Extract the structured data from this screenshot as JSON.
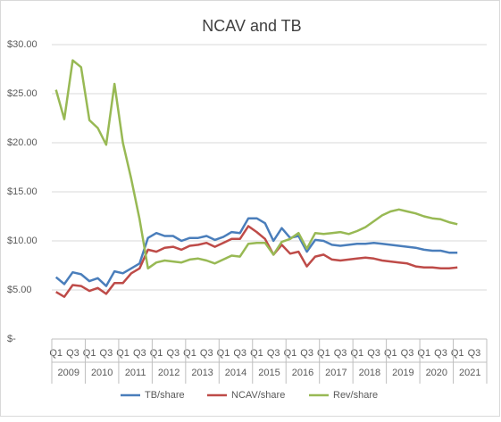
{
  "chart_data": {
    "type": "line",
    "title": "NCAV and TB",
    "categories": [
      "Q1",
      null,
      "Q3",
      null,
      "Q1",
      null,
      "Q3",
      null,
      "Q1",
      null,
      "Q3",
      null,
      "Q1",
      null,
      "Q3",
      null,
      "Q1",
      null,
      "Q3",
      null,
      "Q1",
      null,
      "Q3",
      null,
      "Q1",
      null,
      "Q3",
      null,
      "Q1",
      null,
      "Q3",
      null,
      "Q1",
      null,
      "Q3",
      null,
      "Q1",
      null,
      "Q3",
      null,
      "Q1",
      null,
      "Q3",
      null,
      "Q1",
      null,
      "Q3",
      null,
      "Q1",
      null,
      "Q3",
      null
    ],
    "years": [
      "2009",
      "2010",
      "2011",
      "2012",
      "2013",
      "2014",
      "2015",
      "2016",
      "2017",
      "2018",
      "2019",
      "2020",
      "2021"
    ],
    "series": [
      {
        "name": "TB/share",
        "color": "#4a7ebb",
        "values": [
          6.3,
          5.6,
          6.8,
          6.6,
          5.9,
          6.2,
          5.4,
          6.9,
          6.7,
          7.2,
          7.7,
          10.3,
          10.8,
          10.5,
          10.5,
          10.0,
          10.3,
          10.3,
          10.5,
          10.1,
          10.4,
          10.9,
          10.8,
          12.3,
          12.3,
          11.8,
          10.0,
          11.3,
          10.3,
          10.5,
          8.9,
          10.1,
          10.0,
          9.6,
          9.5,
          9.6,
          9.7,
          9.7,
          9.8,
          9.7,
          9.6,
          9.5,
          9.4,
          9.3,
          9.1,
          9.0,
          9.0,
          8.8,
          8.8,
          null,
          null,
          null
        ]
      },
      {
        "name": "NCAV/share",
        "color": "#be4b48",
        "values": [
          4.8,
          4.3,
          5.5,
          5.4,
          4.9,
          5.2,
          4.6,
          5.7,
          5.7,
          6.7,
          7.2,
          9.1,
          8.9,
          9.3,
          9.4,
          9.1,
          9.5,
          9.6,
          9.8,
          9.4,
          9.8,
          10.2,
          10.2,
          11.5,
          10.9,
          10.2,
          8.6,
          9.6,
          8.7,
          8.9,
          7.4,
          8.4,
          8.6,
          8.1,
          8.0,
          8.1,
          8.2,
          8.3,
          8.2,
          8.0,
          7.9,
          7.8,
          7.7,
          7.4,
          7.3,
          7.3,
          7.2,
          7.2,
          7.3,
          null,
          null,
          null
        ]
      },
      {
        "name": "Rev/share",
        "color": "#98b954",
        "values": [
          25.4,
          22.4,
          28.4,
          27.7,
          22.3,
          21.5,
          19.8,
          26.0,
          20.0,
          16.3,
          12.2,
          7.2,
          7.8,
          8.0,
          7.9,
          7.8,
          8.1,
          8.2,
          8.0,
          7.7,
          8.1,
          8.5,
          8.4,
          9.7,
          9.8,
          9.8,
          8.6,
          9.9,
          10.2,
          10.8,
          9.2,
          10.8,
          10.7,
          10.8,
          10.9,
          10.7,
          11.0,
          11.4,
          12.0,
          12.6,
          13.0,
          13.2,
          13.0,
          12.8,
          12.5,
          12.3,
          12.2,
          11.9,
          11.7,
          null,
          null,
          null
        ]
      }
    ],
    "ylim": [
      0,
      30
    ],
    "yticks": [
      {
        "value": 0,
        "label": "$-"
      },
      {
        "value": 5,
        "label": "$5.00"
      },
      {
        "value": 10,
        "label": "$10.00"
      },
      {
        "value": 15,
        "label": "$15.00"
      },
      {
        "value": 20,
        "label": "$20.00"
      },
      {
        "value": 25,
        "label": "$25.00"
      },
      {
        "value": 30,
        "label": "$30.00"
      }
    ],
    "grid": true,
    "legend": "bottom"
  }
}
